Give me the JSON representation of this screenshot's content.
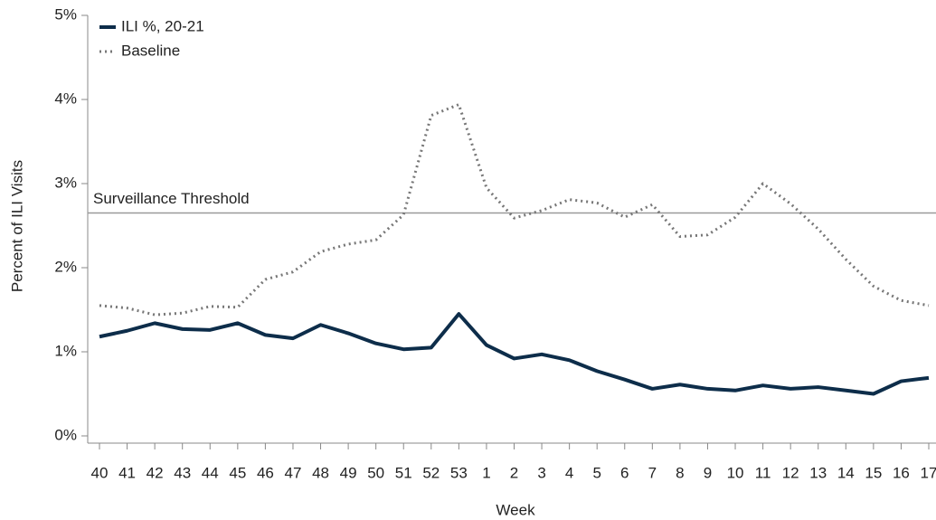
{
  "chart_data": {
    "type": "line",
    "xlabel": "Week",
    "ylabel": "Percent of ILI Visits",
    "categories": [
      "40",
      "41",
      "42",
      "43",
      "44",
      "45",
      "46",
      "47",
      "48",
      "49",
      "50",
      "51",
      "52",
      "53",
      "1",
      "2",
      "3",
      "4",
      "5",
      "6",
      "7",
      "8",
      "9",
      "10",
      "11",
      "12",
      "13",
      "14",
      "15",
      "16",
      "17"
    ],
    "series": [
      {
        "name": "ILI %, 20-21",
        "color": "#0d2d4a",
        "style": "solid",
        "values": [
          1.18,
          1.25,
          1.34,
          1.27,
          1.26,
          1.34,
          1.2,
          1.16,
          1.32,
          1.22,
          1.1,
          1.03,
          1.05,
          1.45,
          1.08,
          0.92,
          0.97,
          0.9,
          0.77,
          0.67,
          0.56,
          0.61,
          0.56,
          0.54,
          0.6,
          0.56,
          0.58,
          0.54,
          0.5,
          0.65,
          0.69
        ]
      },
      {
        "name": "Baseline",
        "color": "#777777",
        "style": "dotted",
        "values": [
          1.55,
          1.52,
          1.44,
          1.46,
          1.54,
          1.53,
          1.86,
          1.95,
          2.19,
          2.28,
          2.33,
          2.63,
          3.81,
          3.94,
          2.95,
          2.59,
          2.68,
          2.81,
          2.77,
          2.6,
          2.75,
          2.37,
          2.39,
          2.6,
          3.0,
          2.76,
          2.46,
          2.1,
          1.78,
          1.61,
          1.55
        ]
      }
    ],
    "ylim": [
      0,
      5
    ],
    "yticks": [
      {
        "value": 0,
        "label": "0%"
      },
      {
        "value": 1,
        "label": "1%"
      },
      {
        "value": 2,
        "label": "2%"
      },
      {
        "value": 3,
        "label": "3%"
      },
      {
        "value": 4,
        "label": "4%"
      },
      {
        "value": 5,
        "label": "5%"
      }
    ],
    "threshold": {
      "label": "Surveillance Threshold",
      "value": 2.65,
      "color": "#999999"
    },
    "legend": "upper-left"
  }
}
